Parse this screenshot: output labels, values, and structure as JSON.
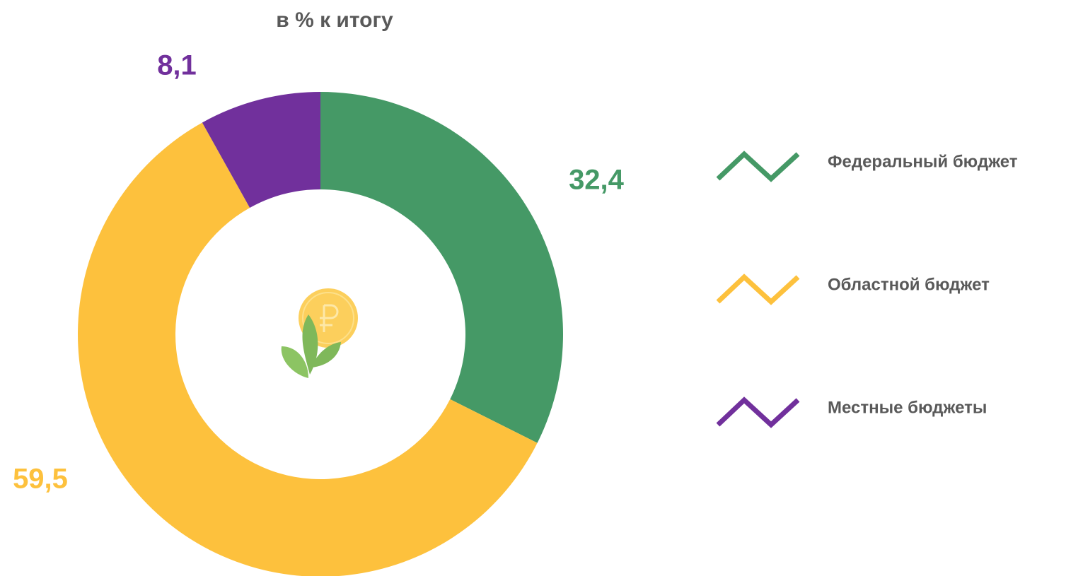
{
  "chart_data": {
    "type": "pie",
    "donut": true,
    "title": "в % к итогу",
    "categories": [
      "Федеральный бюджет",
      "Областной бюджет",
      "Местные бюджеты"
    ],
    "values": [
      32.4,
      59.5,
      8.1
    ],
    "value_labels": [
      "32,4",
      "59,5",
      "8,1"
    ],
    "colors": [
      "#459966",
      "#fdc13d",
      "#71309c"
    ],
    "legend": "right"
  }
}
